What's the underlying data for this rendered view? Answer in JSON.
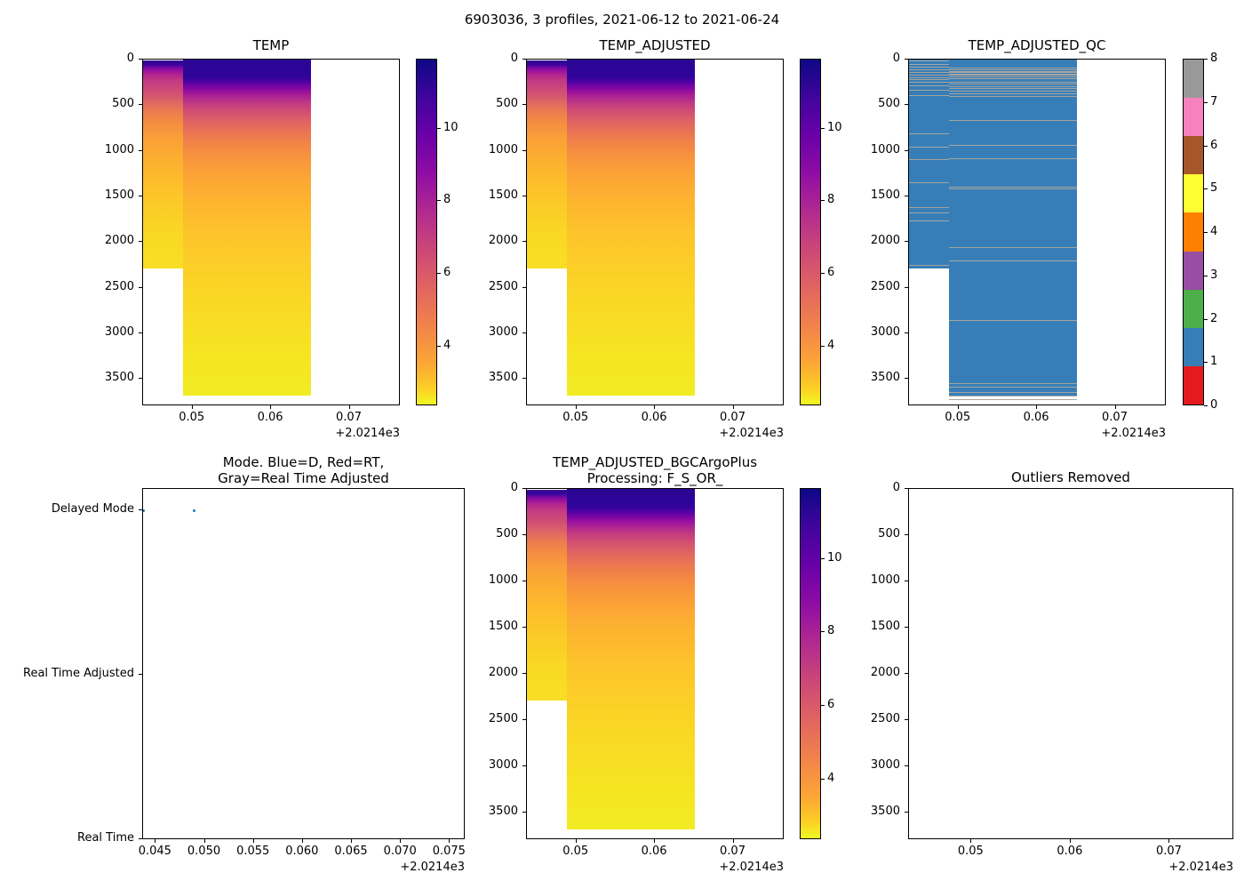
{
  "figure": {
    "title": "6903036, 3 profiles, 2021-06-12 to 2021-06-24",
    "background": "#ffffff"
  },
  "palette": {
    "profile_dot": "#1f77b4",
    "qc_fill": "#377eb8",
    "qc_missing_line": "#a6a49e",
    "qc_flag_colors": [
      "#e41a1c",
      "#377eb8",
      "#4daf4a",
      "#984ea3",
      "#ff7f00",
      "#ffff33",
      "#a65628",
      "#f781bf",
      "#999999"
    ]
  },
  "chart_data": [
    {
      "id": "temp",
      "type": "heatmap",
      "title": "TEMP",
      "x_offset_label": "+2.0214e3",
      "x_range": [
        0.0437,
        0.0765
      ],
      "x_ticks": [
        {
          "v": 0.05,
          "label": "0.05"
        },
        {
          "v": 0.06,
          "label": "0.06"
        },
        {
          "v": 0.07,
          "label": "0.07"
        }
      ],
      "y_range": [
        0,
        3800
      ],
      "y_ticks": [
        0,
        500,
        1000,
        1500,
        2000,
        2500,
        3000,
        3500
      ],
      "columns": [
        {
          "x0": 0.0437,
          "x1": 0.0488,
          "d0": 0,
          "d1": 2300
        },
        {
          "x0": 0.0488,
          "x1": 0.0652,
          "d0": 0,
          "d1": 3700
        }
      ],
      "value_summary": {
        "surface_temp": 11.5,
        "temp_at_1000m": 5.0,
        "deep_temp": 3.2
      },
      "colorbar": {
        "cmap": "plasma reversed (dark=warm)",
        "vmin": 2.35,
        "vmax": 11.9,
        "ticks": [
          10,
          8,
          6,
          4
        ]
      }
    },
    {
      "id": "temp_adjusted",
      "type": "heatmap",
      "title": "TEMP_ADJUSTED",
      "x_offset_label": "+2.0214e3",
      "x_range": [
        0.0437,
        0.0765
      ],
      "x_ticks": [
        {
          "v": 0.05,
          "label": "0.05"
        },
        {
          "v": 0.06,
          "label": "0.06"
        },
        {
          "v": 0.07,
          "label": "0.07"
        }
      ],
      "y_range": [
        0,
        3800
      ],
      "y_ticks": [
        0,
        500,
        1000,
        1500,
        2000,
        2500,
        3000,
        3500
      ],
      "columns": [
        {
          "x0": 0.0437,
          "x1": 0.0488,
          "d0": 0,
          "d1": 2300
        },
        {
          "x0": 0.0488,
          "x1": 0.0652,
          "d0": 0,
          "d1": 3700
        }
      ],
      "value_summary": {
        "surface_temp": 11.5,
        "temp_at_1000m": 5.0,
        "deep_temp": 3.2
      },
      "colorbar": {
        "cmap": "plasma reversed (dark=warm)",
        "vmin": 2.35,
        "vmax": 11.9,
        "ticks": [
          10,
          8,
          6,
          4
        ]
      }
    },
    {
      "id": "temp_adjusted_qc",
      "type": "qc_heatmap",
      "title": "TEMP_ADJUSTED_QC",
      "x_offset_label": "+2.0214e3",
      "x_range": [
        0.0437,
        0.0765
      ],
      "x_ticks": [
        {
          "v": 0.05,
          "label": "0.05"
        },
        {
          "v": 0.06,
          "label": "0.06"
        },
        {
          "v": 0.07,
          "label": "0.07"
        }
      ],
      "y_range": [
        0,
        3800
      ],
      "y_ticks": [
        0,
        500,
        1000,
        1500,
        2000,
        2500,
        3000,
        3500
      ],
      "columns": [
        {
          "x0": 0.0437,
          "x1": 0.0488,
          "d0": 0,
          "d1": 2300
        },
        {
          "x0": 0.0488,
          "x1": 0.0652,
          "d0": 0,
          "d1": 3700
        }
      ],
      "dominant_qc_flag": 1,
      "missing_line_depths": {
        "col1": [
          10,
          50,
          80,
          105,
          140,
          165,
          190,
          215,
          245,
          285,
          330,
          390,
          810,
          950,
          1090,
          1340,
          1620,
          1680,
          1760,
          2250
        ],
        "col2": [
          90,
          110,
          125,
          140,
          155,
          170,
          185,
          200,
          245,
          265,
          290,
          315,
          340,
          370,
          395,
          665,
          940,
          1080,
          1390,
          1415,
          2060,
          2200,
          2850,
          3545,
          3590,
          3640,
          3685,
          3720
        ]
      },
      "colorbar": {
        "cmap": "Set1 discrete",
        "categories": [
          0,
          1,
          2,
          3,
          4,
          5,
          6,
          7,
          8
        ],
        "tick_labels": [
          "0",
          "1",
          "2",
          "3",
          "4",
          "5",
          "6",
          "7",
          "8"
        ]
      }
    },
    {
      "id": "mode",
      "type": "scatter",
      "title_line1": "Mode. Blue=D, Red=RT,",
      "title_line2": "Gray=Real Time Adjusted",
      "x_offset_label": "+2.0214e3",
      "x_range": [
        0.0437,
        0.0766
      ],
      "x_ticks": [
        {
          "v": 0.045,
          "label": "0.045"
        },
        {
          "v": 0.05,
          "label": "0.050"
        },
        {
          "v": 0.055,
          "label": "0.055"
        },
        {
          "v": 0.06,
          "label": "0.060"
        },
        {
          "v": 0.065,
          "label": "0.065"
        },
        {
          "v": 0.07,
          "label": "0.070"
        },
        {
          "v": 0.075,
          "label": "0.075"
        }
      ],
      "y_categories": [
        {
          "label": "Delayed Mode",
          "pos": 0.061
        },
        {
          "label": "Real Time Adjusted",
          "pos": 0.529
        },
        {
          "label": "Real Time",
          "pos": 0.998
        }
      ],
      "points": [
        {
          "x": 0.0437,
          "cat": "Delayed Mode"
        },
        {
          "x": 0.0489,
          "cat": "Delayed Mode"
        },
        {
          "x": 0.0766,
          "cat": "Delayed Mode"
        }
      ]
    },
    {
      "id": "bgc",
      "type": "heatmap",
      "title_line1": "TEMP_ADJUSTED_BGCArgoPlus",
      "title_line2": "Processing: F_S_OR_",
      "x_offset_label": "+2.0214e3",
      "x_range": [
        0.0437,
        0.0765
      ],
      "x_ticks": [
        {
          "v": 0.05,
          "label": "0.05"
        },
        {
          "v": 0.06,
          "label": "0.06"
        },
        {
          "v": 0.07,
          "label": "0.07"
        }
      ],
      "y_range": [
        0,
        3800
      ],
      "y_ticks": [
        0,
        500,
        1000,
        1500,
        2000,
        2500,
        3000,
        3500
      ],
      "columns": [
        {
          "x0": 0.0437,
          "x1": 0.0488,
          "d0": 0,
          "d1": 2300
        },
        {
          "x0": 0.0488,
          "x1": 0.0652,
          "d0": 0,
          "d1": 3700
        }
      ],
      "value_summary": {
        "surface_temp": 11.5,
        "temp_at_1000m": 5.0,
        "deep_temp": 3.2
      },
      "colorbar": {
        "cmap": "plasma reversed (dark=warm)",
        "vmin": 2.35,
        "vmax": 11.9,
        "ticks": [
          10,
          8,
          6,
          4
        ]
      }
    },
    {
      "id": "outliers",
      "type": "empty",
      "title": "Outliers Removed",
      "x_offset_label": "+2.0214e3",
      "x_range": [
        0.0437,
        0.0765
      ],
      "x_ticks": [
        {
          "v": 0.05,
          "label": "0.05"
        },
        {
          "v": 0.06,
          "label": "0.06"
        },
        {
          "v": 0.07,
          "label": "0.07"
        }
      ],
      "y_range": [
        0,
        3800
      ],
      "y_ticks": [
        0,
        500,
        1000,
        1500,
        2000,
        2500,
        3000,
        3500
      ]
    }
  ]
}
